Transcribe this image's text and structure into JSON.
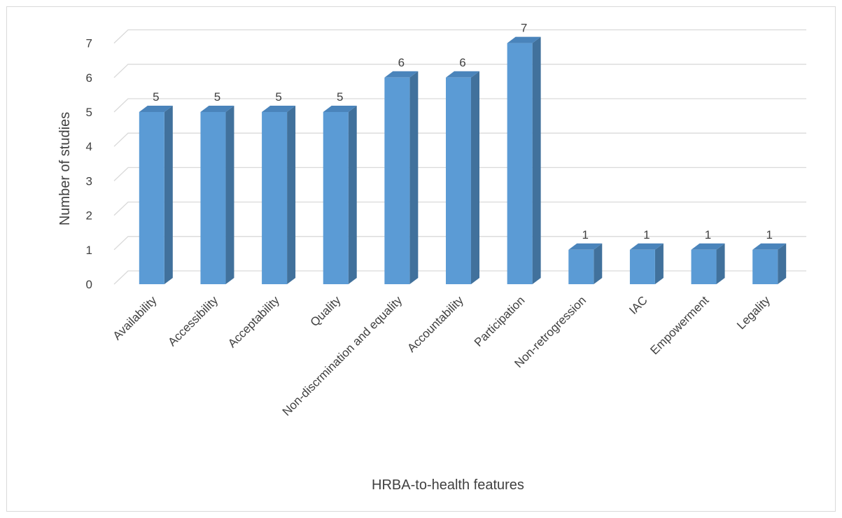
{
  "chart_data": {
    "type": "bar",
    "title": "",
    "xlabel": "HRBA-to-health features",
    "ylabel": "Number of studies",
    "ylim": [
      0,
      7
    ],
    "yticks": [
      "0",
      "1",
      "2",
      "3",
      "4",
      "5",
      "6",
      "7"
    ],
    "grid": true,
    "style": "3d-column",
    "bar_color": "#5b9bd5",
    "bar_side_color": "#41719c",
    "bar_top_color": "#4a84bb",
    "categories": [
      "Availability",
      "Accessibility",
      "Acceptability",
      "Quality",
      "Non-discrmination and equality",
      "Accountability",
      "Participation",
      "Non-retrogression",
      "IAC",
      "Empowerment",
      "Legality"
    ],
    "values": [
      5,
      5,
      5,
      5,
      6,
      6,
      7,
      1,
      1,
      1,
      1
    ],
    "data_labels": [
      "5",
      "5",
      "5",
      "5",
      "6",
      "6",
      "7",
      "1",
      "1",
      "1",
      "1"
    ]
  }
}
